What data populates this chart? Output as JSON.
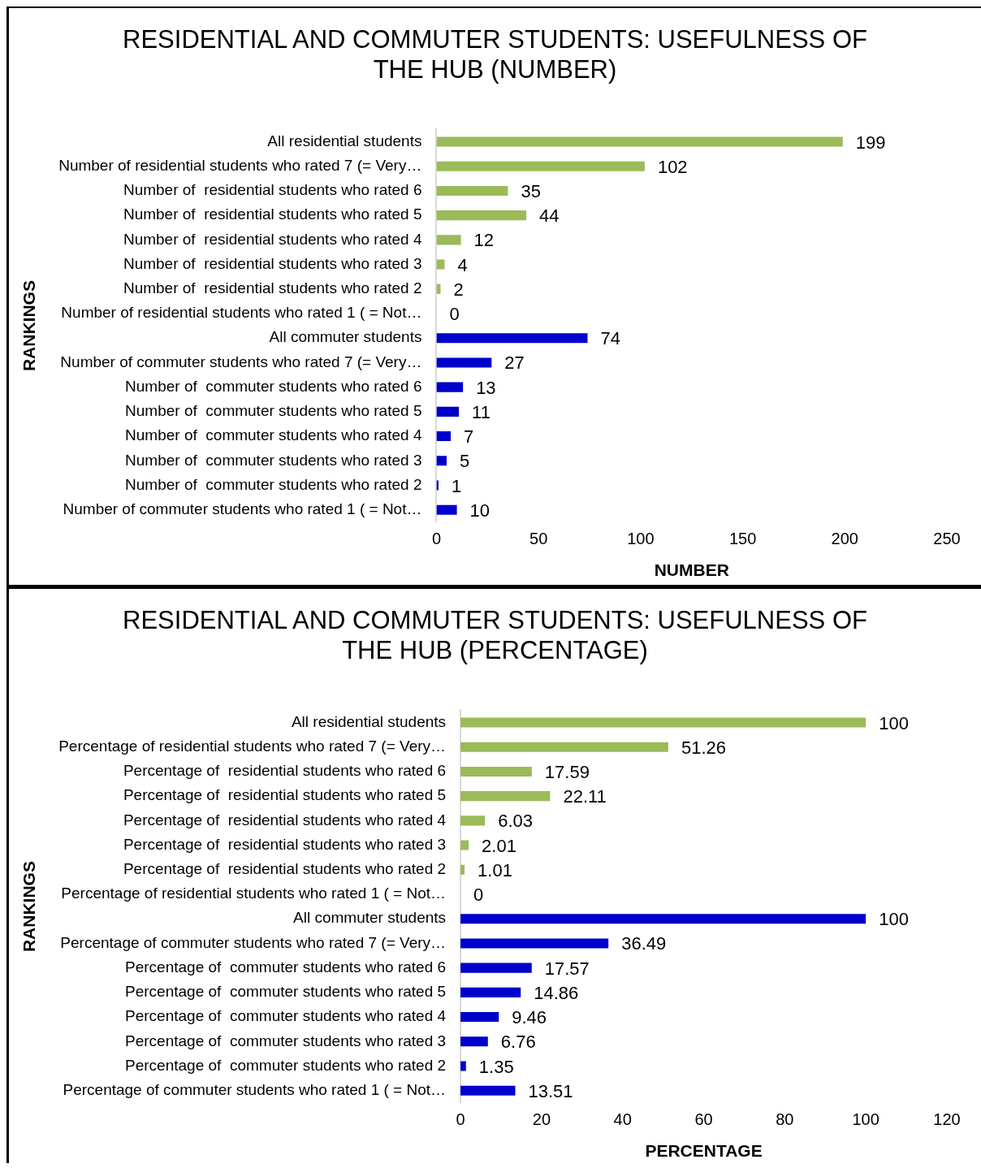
{
  "chart_data": [
    {
      "type": "bar",
      "orientation": "horizontal",
      "title": "RESIDENTIAL AND COMMUTER STUDENTS: USEFULNESS OF THE HUB (NUMBER)",
      "xlabel": "NUMBER",
      "ylabel": "RANKINGS",
      "categories": [
        "All residential students",
        "Number of residential students who rated 7 (= Very…",
        "Number of  residential students who rated 6",
        "Number of  residential students who rated 5",
        "Number of  residential students who rated 4",
        "Number of  residential students who rated 3",
        "Number of  residential students who rated 2",
        "Number of residential students who rated 1 ( = Not…",
        "All commuter students",
        "Number of commuter students who rated 7 (= Very…",
        "Number of  commuter students who rated 6",
        "Number of  commuter students who rated 5",
        "Number of  commuter students who rated 4",
        "Number of  commuter students who rated 3",
        "Number of  commuter students who rated 2",
        "Number of commuter students who rated 1 ( = Not…"
      ],
      "values": [
        199,
        102,
        35,
        44,
        12,
        4,
        2,
        0,
        74,
        27,
        13,
        11,
        7,
        5,
        1,
        10
      ],
      "colors": [
        "#9bbb59",
        "#9bbb59",
        "#9bbb59",
        "#9bbb59",
        "#9bbb59",
        "#9bbb59",
        "#9bbb59",
        "#9bbb59",
        "#0000cc",
        "#0000cc",
        "#0000cc",
        "#0000cc",
        "#0000cc",
        "#0000cc",
        "#0000cc",
        "#0000cc"
      ],
      "xlim": [
        0,
        250
      ],
      "xticks": [
        0,
        50,
        100,
        150,
        200,
        250
      ],
      "grid": false,
      "legend": false,
      "data_labels": true
    },
    {
      "type": "bar",
      "orientation": "horizontal",
      "title": "RESIDENTIAL AND COMMUTER STUDENTS: USEFULNESS OF THE HUB (PERCENTAGE)",
      "xlabel": "PERCENTAGE",
      "ylabel": "RANKINGS",
      "categories": [
        "All residential students",
        "Percentage of residential students who rated 7 (= Very…",
        "Percentage of  residential students who rated 6",
        "Percentage of  residential students who rated 5",
        "Percentage of  residential students who rated 4",
        "Percentage of  residential students who rated 3",
        "Percentage of  residential students who rated 2",
        "Percentage of residential students who rated 1 ( = Not…",
        "All commuter students",
        "Percentage of commuter students who rated 7 (= Very…",
        "Percentage of  commuter students who rated 6",
        "Percentage of  commuter students who rated 5",
        "Percentage of  commuter students who rated 4",
        "Percentage of  commuter students who rated 3",
        "Percentage of  commuter students who rated 2",
        "Percentage of commuter students who rated 1 ( = Not…"
      ],
      "values": [
        100,
        51.26,
        17.59,
        22.11,
        6.03,
        2.01,
        1.01,
        0,
        100,
        36.49,
        17.57,
        14.86,
        9.46,
        6.76,
        1.35,
        13.51
      ],
      "colors": [
        "#9bbb59",
        "#9bbb59",
        "#9bbb59",
        "#9bbb59",
        "#9bbb59",
        "#9bbb59",
        "#9bbb59",
        "#9bbb59",
        "#0000cc",
        "#0000cc",
        "#0000cc",
        "#0000cc",
        "#0000cc",
        "#0000cc",
        "#0000cc",
        "#0000cc"
      ],
      "xlim": [
        0,
        120
      ],
      "xticks": [
        0,
        20,
        40,
        60,
        80,
        100,
        120
      ],
      "grid": false,
      "legend": false,
      "data_labels": true
    }
  ]
}
